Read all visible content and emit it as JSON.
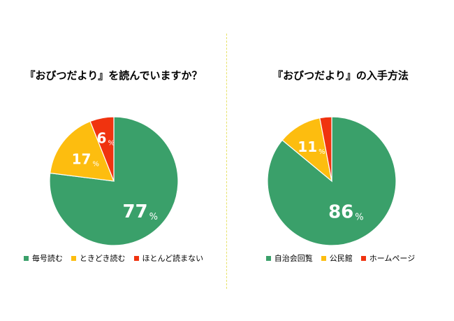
{
  "colors": {
    "green": "#3aa06a",
    "yellow": "#fdbd0f",
    "red": "#f0330f"
  },
  "chart_data": [
    {
      "type": "pie",
      "title": "『おびつだより』を読んでいますか？",
      "unit": "%",
      "categories": [
        "毎号読む",
        "ときどき読む",
        "ほとんど読まない"
      ],
      "values": [
        77,
        17,
        6
      ],
      "colors": [
        "#3aa06a",
        "#fdbd0f",
        "#f0330f"
      ],
      "legend_position": "bottom"
    },
    {
      "type": "pie",
      "title": "『おびつだより』の入手方法",
      "unit": "%",
      "categories": [
        "自治会回覧",
        "公民館",
        "ホームページ"
      ],
      "values": [
        86,
        11,
        3
      ],
      "value_labels": [
        "86",
        "11",
        ""
      ],
      "colors": [
        "#3aa06a",
        "#fdbd0f",
        "#f0330f"
      ],
      "legend_position": "bottom"
    }
  ]
}
